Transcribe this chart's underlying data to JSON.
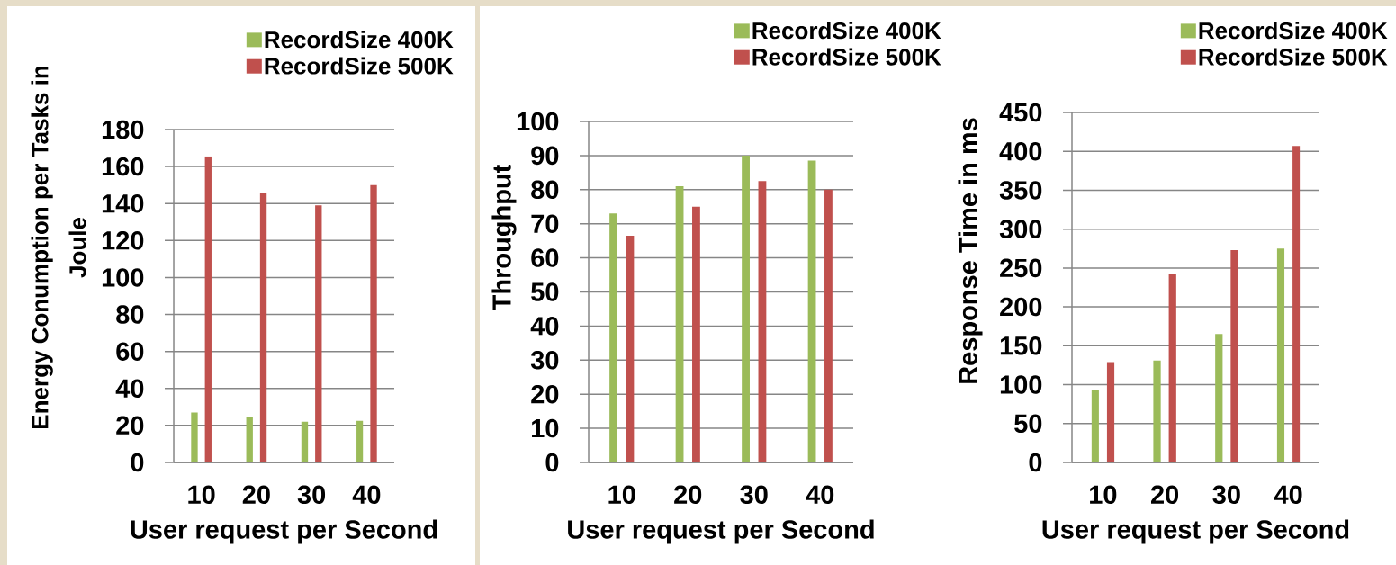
{
  "chart_data": [
    {
      "type": "bar",
      "ylabel": "Energy Conumption per Tasks in Joule",
      "xlabel": "User request per Second",
      "categories": [
        "10",
        "20",
        "30",
        "40"
      ],
      "series": [
        {
          "name": "RecordSize 400K",
          "color": "#9bbb59",
          "values": [
            27,
            24.5,
            22,
            22.5
          ]
        },
        {
          "name": "RecordSize 500K",
          "color": "#c0504d",
          "values": [
            165.5,
            146,
            139,
            150
          ]
        }
      ],
      "ylim": [
        0,
        180
      ],
      "yticks": [
        0,
        20,
        40,
        60,
        80,
        100,
        120,
        140,
        160,
        180
      ],
      "grid": "y",
      "legend": "top right"
    },
    {
      "type": "bar",
      "ylabel": "Throughput",
      "xlabel": "User request per Second",
      "categories": [
        "10",
        "20",
        "30",
        "40"
      ],
      "series": [
        {
          "name": "RecordSize 400K",
          "color": "#9bbb59",
          "values": [
            73,
            81,
            90,
            88.5
          ]
        },
        {
          "name": "RecordSize 500K",
          "color": "#c0504d",
          "values": [
            66.5,
            75,
            82.5,
            80
          ]
        }
      ],
      "ylim": [
        0,
        100
      ],
      "yticks": [
        0,
        10,
        20,
        30,
        40,
        50,
        60,
        70,
        80,
        90,
        100
      ],
      "grid": "y",
      "legend": "top right"
    },
    {
      "type": "bar",
      "ylabel": "Response Time in ms",
      "xlabel": "User request per Second",
      "categories": [
        "10",
        "20",
        "30",
        "40"
      ],
      "series": [
        {
          "name": "RecordSize 400K",
          "color": "#9bbb59",
          "values": [
            93,
            131,
            165,
            275
          ]
        },
        {
          "name": "RecordSize 500K",
          "color": "#c0504d",
          "values": [
            129,
            242,
            273,
            407
          ]
        }
      ],
      "ylim": [
        0,
        450
      ],
      "yticks": [
        0,
        50,
        100,
        150,
        200,
        250,
        300,
        350,
        400,
        450
      ],
      "grid": "y",
      "legend": "top right"
    }
  ]
}
